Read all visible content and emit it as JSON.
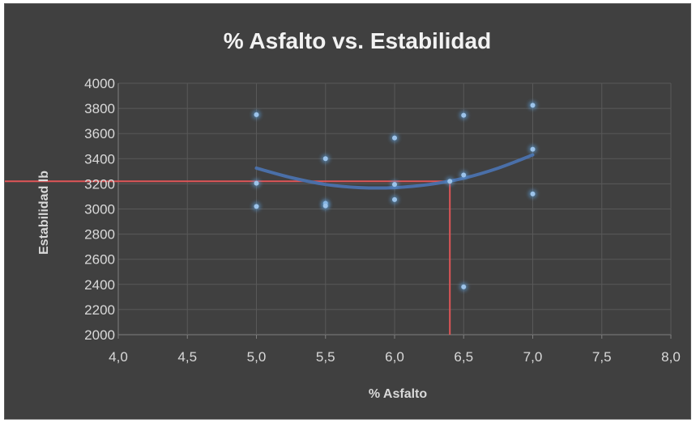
{
  "chart_data": {
    "type": "scatter",
    "title": "% Asfalto vs. Estabilidad",
    "xlabel": "% Asfalto",
    "ylabel": "Estabilidad  lb",
    "xlim": [
      4.0,
      8.0
    ],
    "ylim": [
      2000,
      4000
    ],
    "x_ticks": [
      "4,0",
      "4,5",
      "5,0",
      "5,5",
      "6,0",
      "6,5",
      "7,0",
      "7,5",
      "8,0"
    ],
    "y_ticks": [
      "2000",
      "2200",
      "2400",
      "2600",
      "2800",
      "3000",
      "3200",
      "3400",
      "3600",
      "3800",
      "4000"
    ],
    "grid": true,
    "legend": "none",
    "points": [
      {
        "x": 5.0,
        "y": 3750
      },
      {
        "x": 5.0,
        "y": 3205
      },
      {
        "x": 5.0,
        "y": 3020
      },
      {
        "x": 5.5,
        "y": 3400
      },
      {
        "x": 5.5,
        "y": 3045
      },
      {
        "x": 5.5,
        "y": 3025
      },
      {
        "x": 6.0,
        "y": 3565
      },
      {
        "x": 6.0,
        "y": 3195
      },
      {
        "x": 6.0,
        "y": 3075
      },
      {
        "x": 6.4,
        "y": 3220
      },
      {
        "x": 6.5,
        "y": 3745
      },
      {
        "x": 6.5,
        "y": 3270
      },
      {
        "x": 6.5,
        "y": 2380
      },
      {
        "x": 7.0,
        "y": 3825
      },
      {
        "x": 7.0,
        "y": 3475
      },
      {
        "x": 7.0,
        "y": 3120
      }
    ],
    "trendline": {
      "type": "polynomial",
      "x": [
        5.0,
        5.25,
        5.5,
        5.75,
        6.0,
        6.25,
        6.5,
        6.75,
        7.0
      ],
      "y": [
        3325,
        3250,
        3195,
        3170,
        3170,
        3195,
        3245,
        3325,
        3430
      ]
    },
    "reference_lines": {
      "x_value": 6.4,
      "y_value": 3220,
      "color": "#c0393b"
    },
    "colors": {
      "background": "#404040",
      "points": "#5b9bd5",
      "trendline": "#4a6fa8"
    }
  }
}
